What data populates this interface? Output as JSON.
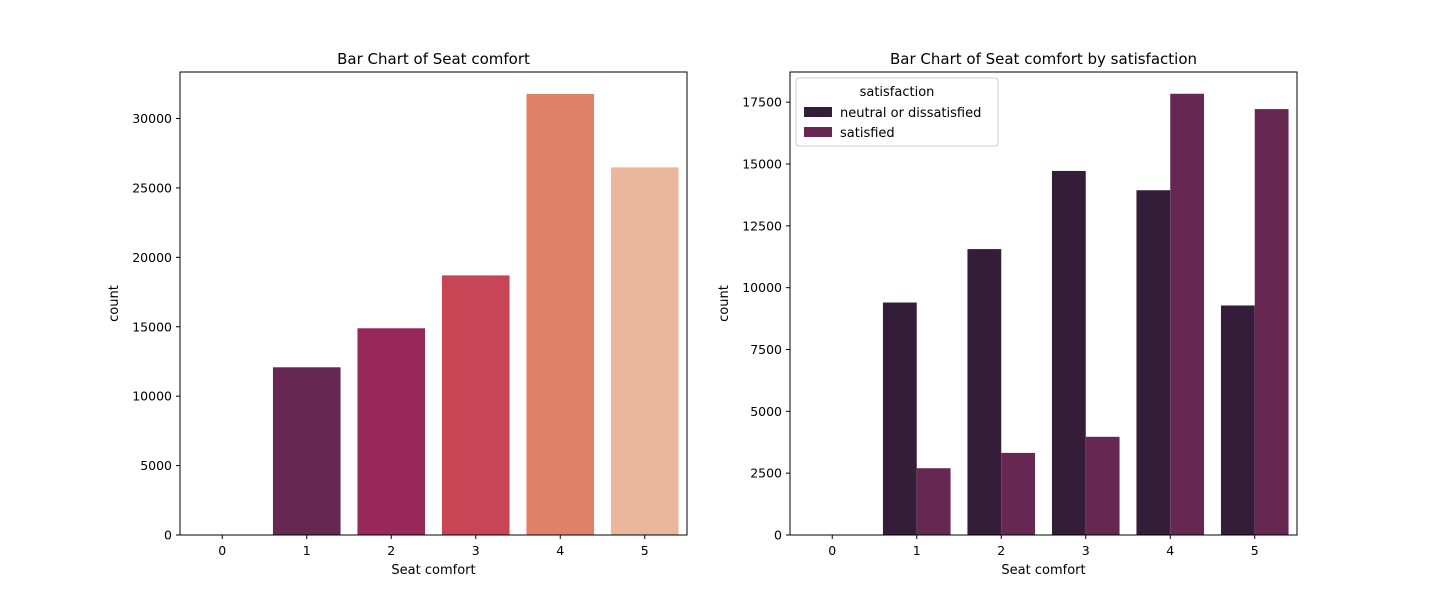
{
  "chart_data": [
    {
      "type": "bar",
      "title": "Bar Chart of Seat comfort",
      "xlabel": "Seat comfort",
      "ylabel": "count",
      "categories": [
        "0",
        "1",
        "2",
        "3",
        "4",
        "5"
      ],
      "values": [
        1,
        12080,
        14890,
        18700,
        31770,
        26480
      ],
      "colors": [
        "#3c1d47",
        "#662852",
        "#99285a",
        "#c84556",
        "#e0826a",
        "#eab79c"
      ],
      "ylim": [
        0,
        33350
      ],
      "yticks": [
        0,
        5000,
        10000,
        15000,
        20000,
        25000,
        30000
      ],
      "ytick_labels": [
        "0",
        "5000",
        "10000",
        "15000",
        "20000",
        "25000",
        "30000"
      ],
      "grid": false,
      "legend": null
    },
    {
      "type": "bar",
      "title": "Bar Chart of Seat comfort by satisfaction",
      "xlabel": "Seat comfort",
      "ylabel": "count",
      "categories": [
        "0",
        "1",
        "2",
        "3",
        "4",
        "5"
      ],
      "series": [
        {
          "name": "neutral or dissatisfied",
          "color": "#341d39",
          "values": [
            1,
            9400,
            11560,
            14720,
            13940,
            9280
          ]
        },
        {
          "name": "satisfied",
          "color": "#662852",
          "values": [
            0,
            2700,
            3320,
            3970,
            17840,
            17220
          ]
        }
      ],
      "ylim": [
        0,
        18720
      ],
      "yticks": [
        0,
        2500,
        5000,
        7500,
        10000,
        12500,
        15000,
        17500
      ],
      "ytick_labels": [
        "0",
        "2500",
        "5000",
        "7500",
        "10000",
        "12500",
        "15000",
        "17500"
      ],
      "grid": false,
      "legend": {
        "title": "satisfaction",
        "position": "top-left"
      }
    }
  ]
}
